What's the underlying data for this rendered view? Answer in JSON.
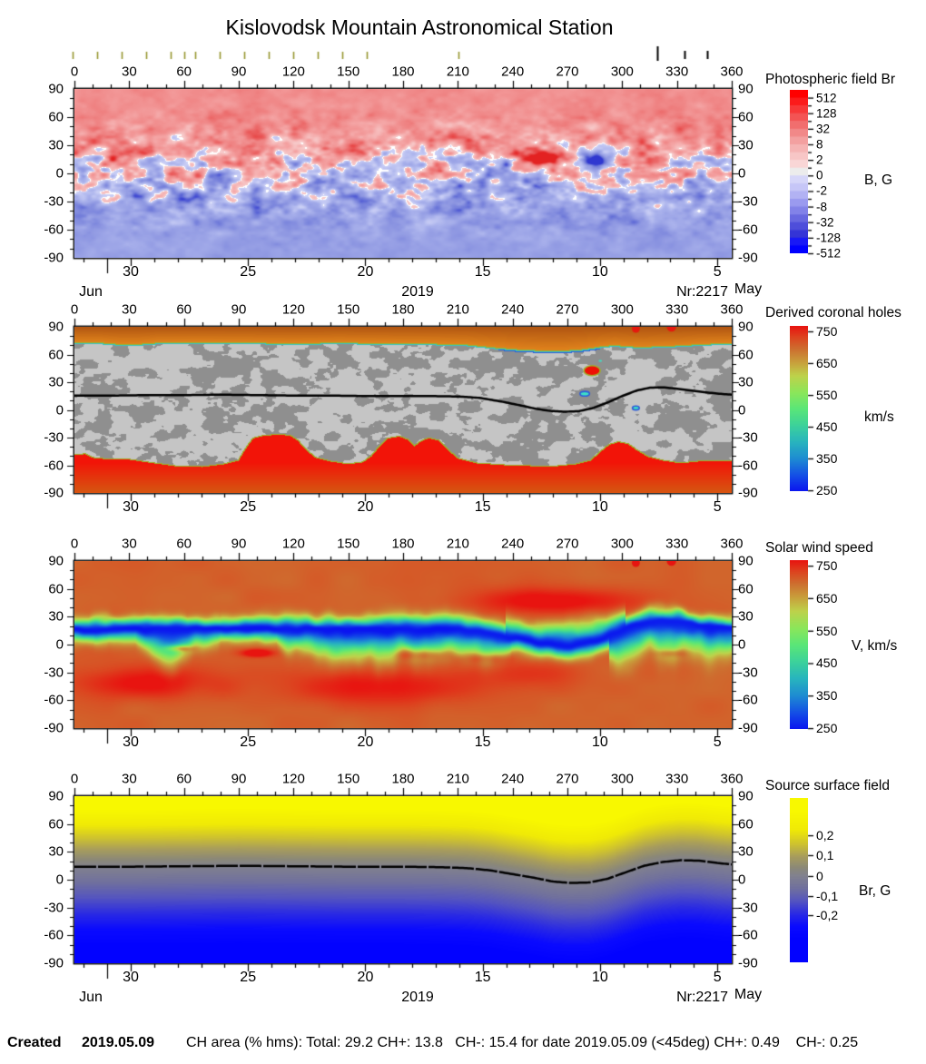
{
  "title": "Kislovodsk Mountain Astronomical Station",
  "axes": {
    "lon_ticks": [
      "0",
      "30",
      "60",
      "90",
      "120",
      "150",
      "180",
      "210",
      "240",
      "270",
      "300",
      "330",
      "360"
    ],
    "lat_ticks": [
      "90",
      "60",
      "30",
      "0",
      "-30",
      "-60",
      "-90"
    ],
    "date_ticks": [
      "30",
      "25",
      "20",
      "15",
      "10",
      "5"
    ],
    "month_left": "Jun",
    "month_right": "May",
    "year": "2019",
    "carrington": "Nr:2217"
  },
  "footer": {
    "created_label": "Created",
    "created_date": "2019.05.09",
    "ch_area_text": "CH area (% hms): Total: 29.2 CH+: 13.8   CH-: 15.4 for date 2019.05.09 (<45deg) CH+: 0.49    CH-: 0.25"
  },
  "palette": {
    "p1_pos_stops": [
      [
        0,
        "#f8d2d2"
      ],
      [
        0.25,
        "#f4a4a4"
      ],
      [
        0.5,
        "#ef8383"
      ],
      [
        0.75,
        "#e95555"
      ],
      [
        1,
        "#e32222"
      ]
    ],
    "p1_neg_stops": [
      [
        0,
        "#d2d6f8"
      ],
      [
        0.25,
        "#aab2ec"
      ],
      [
        0.5,
        "#8f98e2"
      ],
      [
        0.75,
        "#6b76d8"
      ],
      [
        1,
        "#3038d0"
      ]
    ],
    "p1_zero": "#ffffff",
    "p2_gray_light": "#c5c5c5",
    "p2_gray_dark": "#8f8f8f",
    "p2_north_near": "#e0831c",
    "p2_north_far": "#b05511",
    "p2_south_near": "#f21408",
    "p2_south_far": "#d85210",
    "p2_edge_olive": "#9fb02c",
    "p2_edge_teal": "#38c4c4",
    "p2_edge_blue": "#2e5ad8",
    "speed_stops": [
      [
        0,
        "#0a14f0"
      ],
      [
        0.1,
        "#1450e6"
      ],
      [
        0.2,
        "#1e8cd2"
      ],
      [
        0.3,
        "#28b4be"
      ],
      [
        0.4,
        "#3cd29b"
      ],
      [
        0.5,
        "#5ae678"
      ],
      [
        0.6,
        "#8ce65a"
      ],
      [
        0.7,
        "#bed24b"
      ],
      [
        0.78,
        "#c8a03c"
      ],
      [
        0.86,
        "#cd7030"
      ],
      [
        0.93,
        "#dc4620"
      ],
      [
        1,
        "#e81410"
      ]
    ],
    "br_stops": [
      [
        -1,
        "#0202ff"
      ],
      [
        -0.8,
        "#0a0aff"
      ],
      [
        -0.6,
        "#2a2ae4"
      ],
      [
        -0.4,
        "#5454c0"
      ],
      [
        -0.2,
        "#70709e"
      ],
      [
        0,
        "#82828e"
      ],
      [
        0.12,
        "#8b8878"
      ],
      [
        0.3,
        "#a89d5c"
      ],
      [
        0.5,
        "#cfc32e"
      ],
      [
        0.72,
        "#f0ea06"
      ],
      [
        1,
        "#f8f800"
      ]
    ],
    "obs_tick_olive": "#96962e",
    "neutral_line": "#000000",
    "cb1_steps": [
      "#ff0000",
      "#fb1b1b",
      "#f73838",
      "#f35454",
      "#f16e6e",
      "#f18888",
      "#f3a0a0",
      "#f5b4b4",
      "#f7c6c6",
      "#f9d6d6",
      "#ececec",
      "#d6d6f9",
      "#c6c6f7",
      "#b2b2f3",
      "#9a9aef",
      "#8282e8",
      "#6868e0",
      "#4e4eda",
      "#3434d6",
      "#1818f6",
      "#0000ff"
    ]
  },
  "chart_data": [
    {
      "type": "heatmap",
      "title": "Photospheric field Br",
      "unit": "B, G",
      "x_range": [
        0,
        360
      ],
      "y_range": [
        -90,
        90
      ],
      "colorbar": {
        "scale": "symmetric-log",
        "tick_labels": [
          "512",
          "128",
          "32",
          "8",
          "2",
          "0",
          "-2",
          "-8",
          "-32",
          "-128",
          "-512"
        ],
        "unit": "B, G"
      },
      "active_regions": [
        {
          "polarity": "positive",
          "lon": 258,
          "lat": 16
        },
        {
          "polarity": "negative",
          "lon": 284,
          "lat": 14
        },
        {
          "polarity": "negative",
          "lon": 238,
          "lat": 13
        }
      ]
    },
    {
      "type": "heatmap",
      "title": "Derived coronal holes",
      "unit": "km/s",
      "x_range": [
        0,
        360
      ],
      "y_range": [
        -90,
        90
      ],
      "colorbar": {
        "ticks": [
          "750",
          "650",
          "550",
          "450",
          "350",
          "250"
        ],
        "unit": "km/s"
      },
      "north_boundary": [
        [
          0,
          73
        ],
        [
          15,
          73
        ],
        [
          25,
          71.5
        ],
        [
          35,
          71.5
        ],
        [
          45,
          73
        ],
        [
          70,
          73.5
        ],
        [
          95,
          73
        ],
        [
          120,
          72.5
        ],
        [
          145,
          73
        ],
        [
          170,
          72.5
        ],
        [
          195,
          72
        ],
        [
          215,
          71
        ],
        [
          230,
          68
        ],
        [
          245,
          65.5
        ],
        [
          258,
          64.5
        ],
        [
          268,
          64.5
        ],
        [
          278,
          66
        ],
        [
          288,
          69
        ],
        [
          296,
          70.5
        ],
        [
          304,
          69
        ],
        [
          312,
          68.5
        ],
        [
          322,
          69.5
        ],
        [
          332,
          70
        ],
        [
          342,
          71.5
        ],
        [
          352,
          72
        ],
        [
          360,
          72.5
        ]
      ],
      "south_boundary": [
        [
          0,
          -49
        ],
        [
          6,
          -48
        ],
        [
          10,
          -52
        ],
        [
          20,
          -54
        ],
        [
          30,
          -54
        ],
        [
          40,
          -57
        ],
        [
          55,
          -61
        ],
        [
          70,
          -62
        ],
        [
          82,
          -59
        ],
        [
          90,
          -55
        ],
        [
          94,
          -42
        ],
        [
          98,
          -31
        ],
        [
          104,
          -28
        ],
        [
          112,
          -27
        ],
        [
          118,
          -28
        ],
        [
          122,
          -33
        ],
        [
          127,
          -44
        ],
        [
          132,
          -52
        ],
        [
          140,
          -56
        ],
        [
          150,
          -59
        ],
        [
          158,
          -57
        ],
        [
          163,
          -50
        ],
        [
          168,
          -38
        ],
        [
          172,
          -31
        ],
        [
          178,
          -29
        ],
        [
          183,
          -33
        ],
        [
          186,
          -40
        ],
        [
          190,
          -34
        ],
        [
          194,
          -31
        ],
        [
          199,
          -33
        ],
        [
          204,
          -43
        ],
        [
          210,
          -53
        ],
        [
          220,
          -58
        ],
        [
          235,
          -60
        ],
        [
          250,
          -61
        ],
        [
          265,
          -61
        ],
        [
          275,
          -59
        ],
        [
          283,
          -55
        ],
        [
          288,
          -46
        ],
        [
          293,
          -38
        ],
        [
          298,
          -35
        ],
        [
          303,
          -37
        ],
        [
          308,
          -44
        ],
        [
          314,
          -51
        ],
        [
          322,
          -55
        ],
        [
          332,
          -58
        ],
        [
          342,
          -56
        ],
        [
          352,
          -56
        ],
        [
          360,
          -56
        ]
      ],
      "neutral_line": [
        [
          0,
          15.5
        ],
        [
          20,
          15.5
        ],
        [
          40,
          16
        ],
        [
          60,
          16
        ],
        [
          80,
          16.5
        ],
        [
          100,
          16
        ],
        [
          120,
          15.5
        ],
        [
          140,
          15.5
        ],
        [
          160,
          15
        ],
        [
          180,
          15
        ],
        [
          195,
          15
        ],
        [
          210,
          14.5
        ],
        [
          222,
          13
        ],
        [
          234,
          9
        ],
        [
          244,
          5
        ],
        [
          252,
          1.5
        ],
        [
          260,
          -1
        ],
        [
          268,
          -2
        ],
        [
          276,
          -1.5
        ],
        [
          284,
          2
        ],
        [
          292,
          8
        ],
        [
          300,
          15
        ],
        [
          308,
          21
        ],
        [
          315,
          24
        ],
        [
          322,
          24.5
        ],
        [
          330,
          23
        ],
        [
          338,
          21
        ],
        [
          346,
          19
        ],
        [
          353,
          17.5
        ],
        [
          360,
          16.5
        ]
      ],
      "features": [
        {
          "kind": "red-dot",
          "lon": 307.5,
          "lat": 88,
          "r": 2.2
        },
        {
          "kind": "red-dot",
          "lon": 327,
          "lat": 90,
          "r": 2.6
        },
        {
          "kind": "red-ch",
          "lon": 283.5,
          "lat": 42.5,
          "rx": 4.5,
          "ry": 5.5
        },
        {
          "kind": "cyan-patch",
          "lon": 279.5,
          "lat": 17.5,
          "rx": 2.6,
          "ry": 2.6
        },
        {
          "kind": "cyan-patch",
          "lon": 307.5,
          "lat": 2,
          "rx": 1.9,
          "ry": 2.2
        },
        {
          "kind": "cyan-dot",
          "lon": 288,
          "lat": 53,
          "rx": 1,
          "ry": 1
        }
      ]
    },
    {
      "type": "heatmap",
      "title": "Solar wind speed",
      "unit": "V, km/s",
      "x_range": [
        0,
        360
      ],
      "y_range": [
        -90,
        90
      ],
      "colorbar": {
        "ticks": [
          "750",
          "650",
          "550",
          "450",
          "350",
          "250"
        ],
        "unit": "V, km/s"
      },
      "hotspots": [
        {
          "lon": 265,
          "lat": 47,
          "sx": 34,
          "sy": 10,
          "amp": 70
        },
        {
          "lon": 40,
          "lat": -40,
          "sx": 28,
          "sy": 13,
          "amp": 60
        },
        {
          "lon": 165,
          "lat": -45,
          "sx": 36,
          "sy": 14,
          "amp": 62
        },
        {
          "lon": 250,
          "lat": -30,
          "sx": 22,
          "sy": 10,
          "amp": 38
        },
        {
          "lon": 57,
          "lat": -4,
          "sx": 5,
          "sy": 2.5,
          "amp": 150
        },
        {
          "lon": 100,
          "lat": -9,
          "sx": 6,
          "sy": 3,
          "amp": 95
        },
        {
          "lon": 190,
          "lat": -10,
          "sx": 10,
          "sy": 4,
          "amp": 75
        },
        {
          "lon": 225,
          "lat": -14,
          "sx": 8,
          "sy": 4,
          "amp": 65
        },
        {
          "lon": 327,
          "lat": -9,
          "sx": 6,
          "sy": 3,
          "amp": 70
        }
      ],
      "polar_dots": [
        {
          "lon": 307.5,
          "lat": 88,
          "r": 2.2
        },
        {
          "lon": 327,
          "lat": 90,
          "r": 2.6
        }
      ]
    },
    {
      "type": "heatmap",
      "title": "Source surface field",
      "unit": "Br, G",
      "x_range": [
        0,
        360
      ],
      "y_range": [
        -90,
        90
      ],
      "colorbar": {
        "tick_labels": [
          "0,2",
          "0,1",
          "0",
          "-0,1",
          "-0,2"
        ],
        "unit": "Br, G"
      },
      "neutral_line": [
        [
          0,
          14
        ],
        [
          30,
          14
        ],
        [
          60,
          14.5
        ],
        [
          90,
          15
        ],
        [
          120,
          14.5
        ],
        [
          150,
          14
        ],
        [
          180,
          14
        ],
        [
          200,
          13.5
        ],
        [
          215,
          12.5
        ],
        [
          228,
          10
        ],
        [
          240,
          6
        ],
        [
          252,
          2
        ],
        [
          262,
          -2
        ],
        [
          272,
          -3.5
        ],
        [
          282,
          -3
        ],
        [
          292,
          1
        ],
        [
          302,
          8
        ],
        [
          312,
          15
        ],
        [
          322,
          19
        ],
        [
          332,
          21
        ],
        [
          342,
          20.5
        ],
        [
          352,
          18
        ],
        [
          360,
          16.5
        ]
      ]
    }
  ]
}
